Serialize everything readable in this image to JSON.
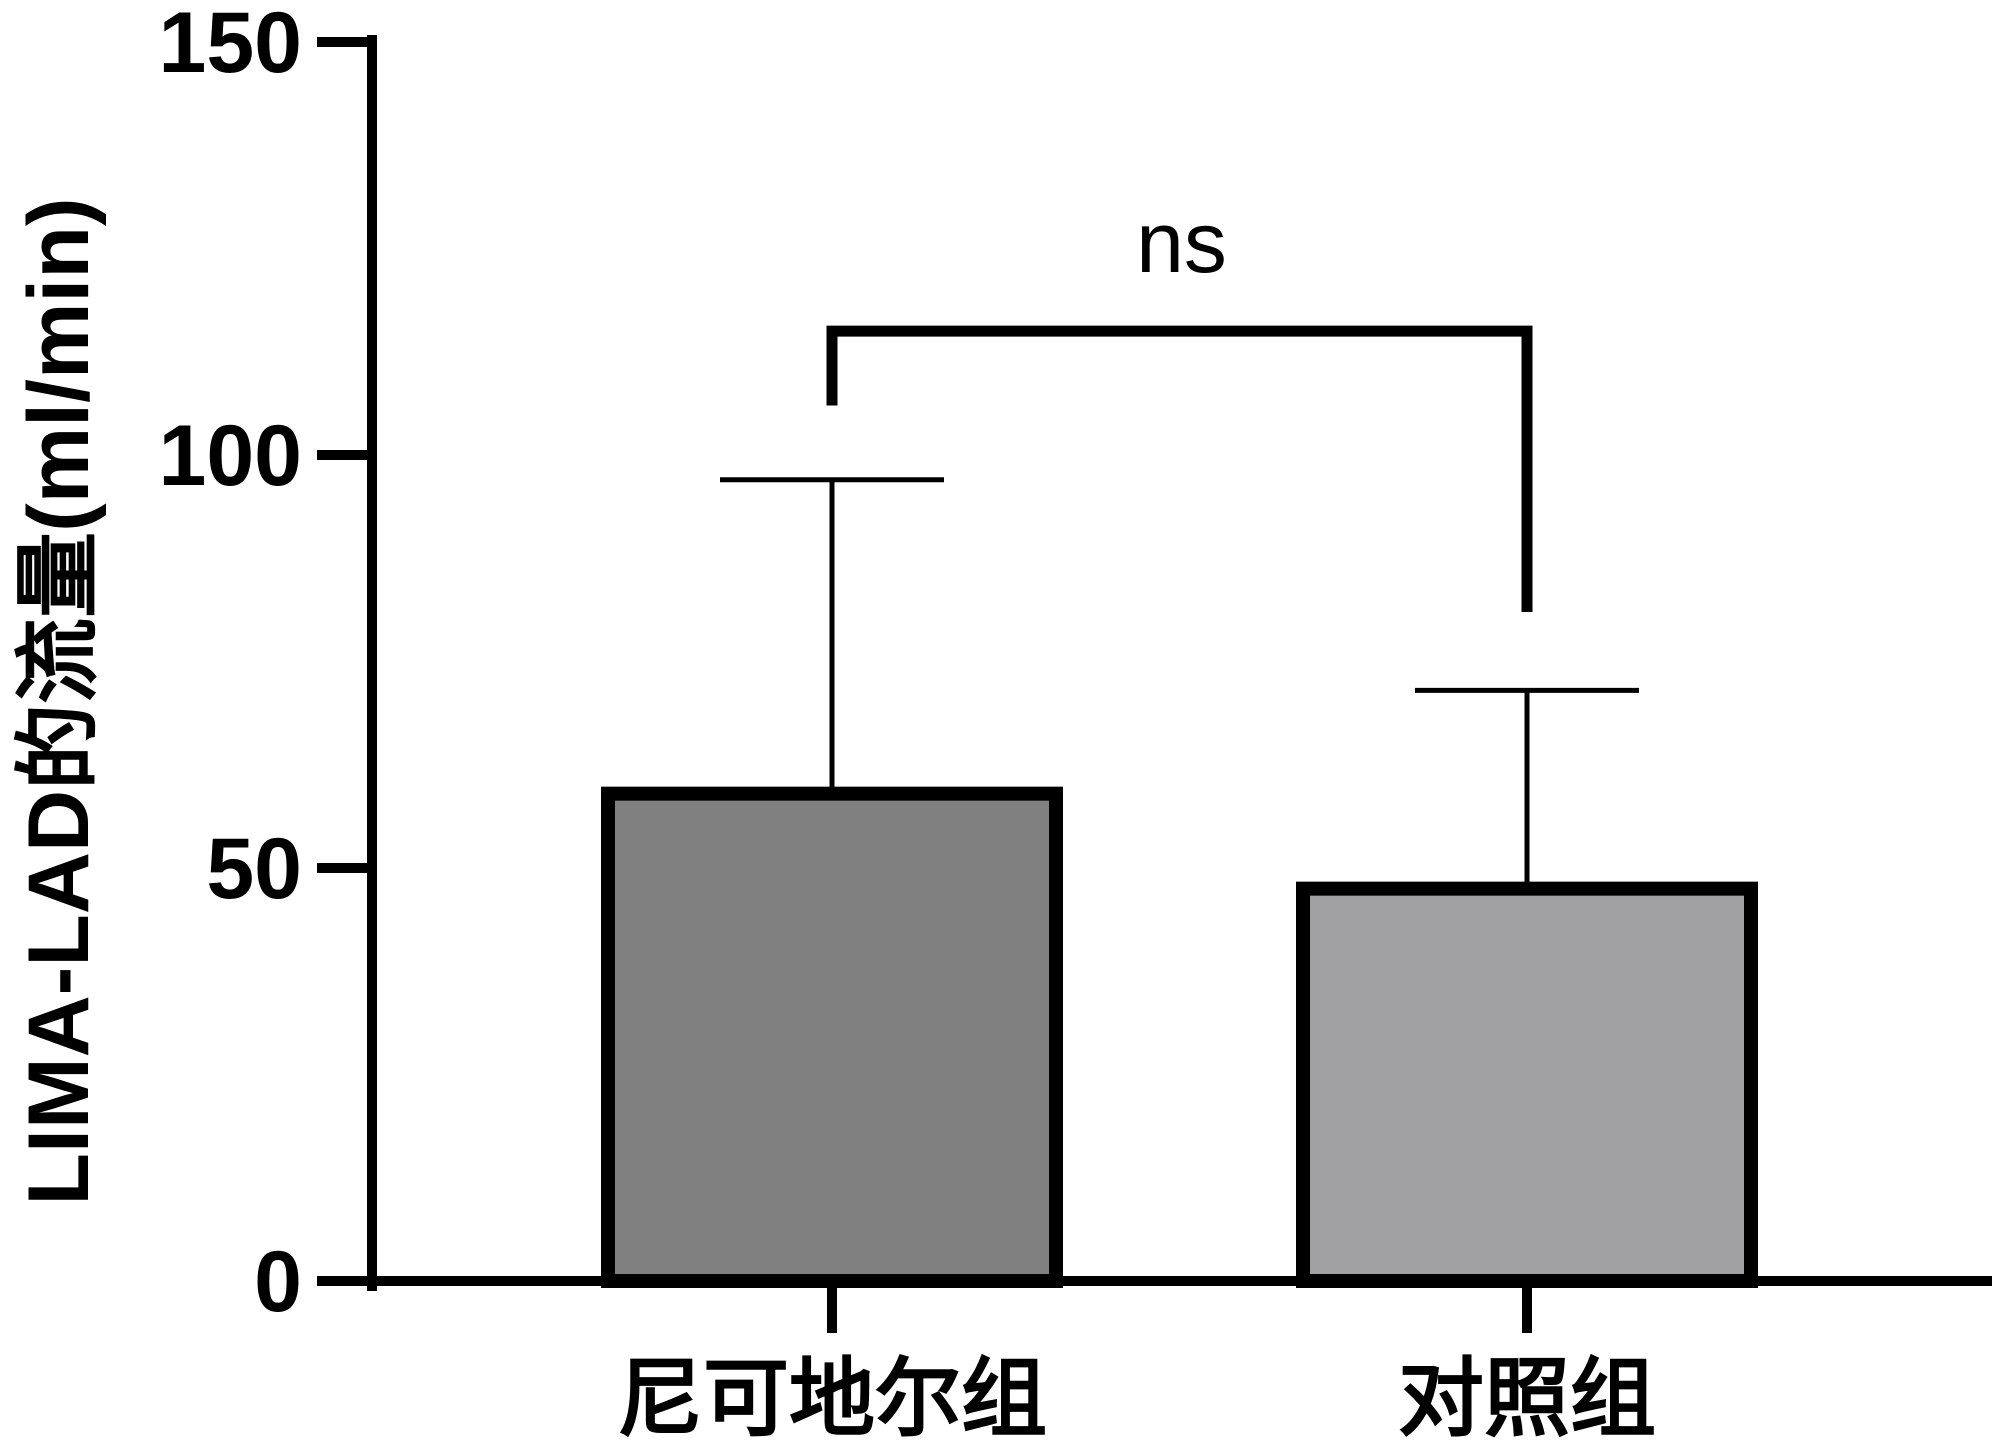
{
  "chart_data": {
    "type": "bar",
    "ylabel": "LIMA-LAD的流量(ml/min)",
    "xlabel": "",
    "ylim": [
      0,
      150
    ],
    "yticks": [
      0,
      50,
      100,
      150
    ],
    "categories": [
      "尼可地尔组",
      "对照组"
    ],
    "values": [
      59,
      47.5
    ],
    "error_upper": [
      97,
      71.5
    ],
    "bar_colors": [
      "#808080",
      "#a0a0a3"
    ],
    "significance": {
      "label": "ns",
      "between": [
        0,
        1
      ],
      "bracket_y": 115,
      "left_foot_y": 106,
      "right_foot_y": 81
    },
    "grid": false,
    "legend": "none"
  }
}
